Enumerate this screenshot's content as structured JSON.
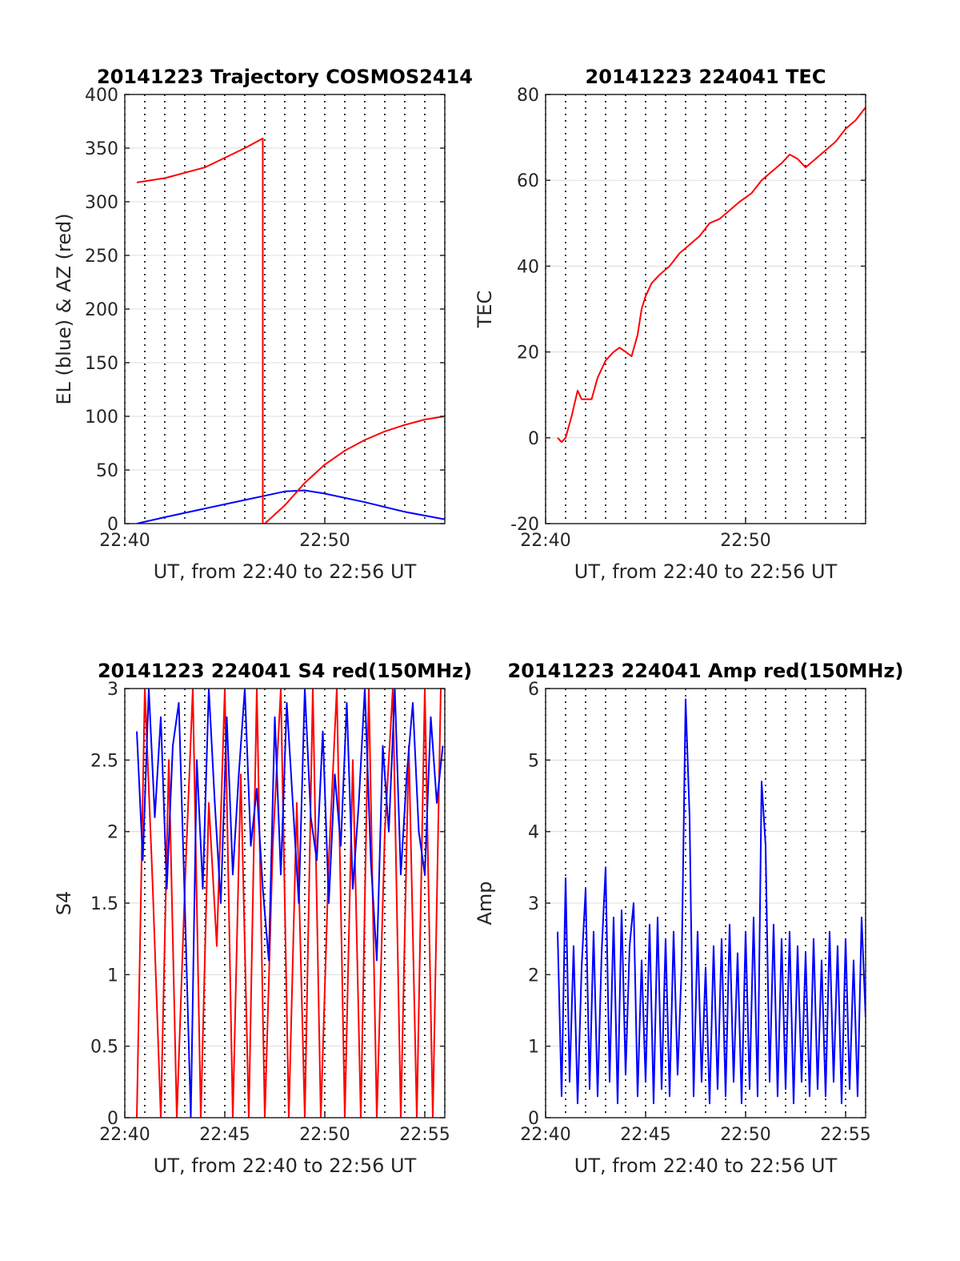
{
  "chart_data": [
    {
      "type": "line",
      "title": "20141223 Trajectory COSMOS2414",
      "xlabel": "UT, from 22:40 to 22:56 UT",
      "ylabel": "EL (blue) & AZ (red)",
      "x_unit": "minutes after 22:40 UT",
      "xlim": [
        0,
        16
      ],
      "ylim": [
        0,
        400
      ],
      "xticks": [
        {
          "v": 0,
          "label": "22:40"
        },
        {
          "v": 10,
          "label": "22:50"
        }
      ],
      "yticks": [
        0,
        50,
        100,
        150,
        200,
        250,
        300,
        350,
        400
      ],
      "grid": true,
      "series": [
        {
          "color": "#0000ff",
          "x": [
            0.6,
            2,
            4,
            6,
            7,
            8,
            9,
            10,
            12,
            14,
            16
          ],
          "y": [
            0,
            6,
            14,
            22,
            26,
            30,
            31,
            28,
            20,
            11,
            4
          ]
        },
        {
          "color": "#ff0000",
          "x": [
            0.6,
            2,
            4,
            5,
            6,
            6.9,
            6.9,
            7,
            8,
            9,
            10,
            11,
            12,
            13,
            14,
            15,
            16
          ],
          "y": [
            318,
            322,
            332,
            341,
            350,
            359,
            0,
            0,
            17,
            38,
            55,
            68,
            78,
            86,
            92,
            97,
            100
          ]
        }
      ]
    },
    {
      "type": "line",
      "title": "20141223 224041 TEC",
      "xlabel": "UT, from 22:40 to 22:56 UT",
      "ylabel": "TEC",
      "x_unit": "minutes after 22:40 UT",
      "xlim": [
        0,
        16
      ],
      "ylim": [
        -20,
        80
      ],
      "xticks": [
        {
          "v": 0,
          "label": "22:40"
        },
        {
          "v": 10,
          "label": "22:50"
        }
      ],
      "yticks": [
        -20,
        0,
        20,
        40,
        60,
        80
      ],
      "grid": true,
      "series": [
        {
          "color": "#ff0000",
          "x": [
            0.6,
            0.8,
            1.0,
            1.3,
            1.6,
            1.8,
            2.0,
            2.3,
            2.6,
            3.0,
            3.4,
            3.7,
            4.0,
            4.3,
            4.6,
            4.8,
            5.0,
            5.3,
            5.7,
            6.2,
            6.7,
            7.2,
            7.7,
            8.2,
            8.7,
            9.2,
            9.7,
            10.3,
            10.8,
            11.3,
            11.8,
            12.2,
            12.6,
            13.0,
            13.5,
            14.0,
            14.5,
            15.0,
            15.5,
            16.0
          ],
          "y": [
            0,
            -1,
            0,
            5,
            11,
            9,
            9,
            9,
            14,
            18,
            20,
            21,
            20,
            19,
            24,
            30,
            33,
            36,
            38,
            40,
            43,
            45,
            47,
            50,
            51,
            53,
            55,
            57,
            60,
            62,
            64,
            66,
            65,
            63,
            65,
            67,
            69,
            72,
            74,
            77
          ]
        }
      ]
    },
    {
      "type": "line",
      "title": "20141223 224041 S4 red(150MHz)",
      "xlabel": "UT, from 22:40 to 22:56 UT",
      "ylabel": "S4",
      "x_unit": "minutes after 22:40 UT",
      "xlim": [
        0,
        16
      ],
      "ylim": [
        0,
        3
      ],
      "xticks": [
        {
          "v": 0,
          "label": "22:40"
        },
        {
          "v": 5,
          "label": "22:45"
        },
        {
          "v": 10,
          "label": "22:50"
        },
        {
          "v": 15,
          "label": "22:55"
        }
      ],
      "yticks": [
        0,
        0.5,
        1,
        1.5,
        2,
        2.5,
        3
      ],
      "grid": true,
      "series": [
        {
          "color": "#ff0000",
          "x": [
            0.6,
            1.0,
            1.4,
            1.8,
            2.2,
            2.6,
            3.0,
            3.4,
            3.8,
            4.2,
            4.6,
            5.0,
            5.4,
            5.8,
            6.2,
            6.6,
            7.0,
            7.4,
            7.8,
            8.2,
            8.6,
            9.0,
            9.4,
            9.8,
            10.2,
            10.6,
            11.0,
            11.4,
            11.8,
            12.2,
            12.6,
            13.0,
            13.4,
            13.8,
            14.2,
            14.6,
            15.0,
            15.4,
            15.8
          ],
          "y": [
            0,
            3,
            1.6,
            0,
            2.5,
            0,
            1.6,
            3,
            0,
            2.2,
            1.2,
            3,
            0,
            2.4,
            0,
            3,
            0,
            1.9,
            3,
            0,
            2.2,
            0,
            3,
            0,
            1.8,
            3,
            0,
            2.5,
            0,
            3,
            0,
            2.0,
            3,
            0,
            2.6,
            0,
            3,
            0,
            3
          ]
        },
        {
          "color": "#0000ff",
          "x": [
            0.6,
            0.9,
            1.2,
            1.5,
            1.8,
            2.1,
            2.4,
            2.7,
            3.0,
            3.3,
            3.6,
            3.9,
            4.2,
            4.5,
            4.8,
            5.1,
            5.4,
            5.7,
            6.0,
            6.3,
            6.6,
            6.9,
            7.2,
            7.5,
            7.8,
            8.1,
            8.4,
            8.7,
            9.0,
            9.3,
            9.6,
            9.9,
            10.2,
            10.5,
            10.8,
            11.1,
            11.4,
            11.7,
            12.0,
            12.3,
            12.6,
            12.9,
            13.2,
            13.5,
            13.8,
            14.1,
            14.4,
            14.7,
            15.0,
            15.3,
            15.6,
            15.9
          ],
          "y": [
            2.7,
            1.8,
            3,
            2.1,
            2.8,
            1.6,
            2.6,
            2.9,
            1.5,
            0,
            2.5,
            1.6,
            3,
            2.2,
            1.5,
            2.8,
            1.7,
            2.4,
            3,
            1.9,
            2.3,
            1.6,
            1.1,
            2.8,
            1.7,
            2.9,
            2.2,
            1.5,
            3,
            2.1,
            1.8,
            2.7,
            1.5,
            2.4,
            1.9,
            2.9,
            1.6,
            2.2,
            3,
            1.8,
            1.1,
            2.6,
            2.0,
            3,
            1.7,
            2.4,
            2.9,
            2.0,
            1.7,
            2.8,
            2.2,
            2.6
          ]
        }
      ]
    },
    {
      "type": "line",
      "title": "20141223 224041 Amp red(150MHz)",
      "xlabel": "UT, from 22:40 to 22:56 UT",
      "ylabel": "Amp",
      "x_unit": "minutes after 22:40 UT",
      "xlim": [
        0,
        16
      ],
      "ylim": [
        0,
        6
      ],
      "xticks": [
        {
          "v": 0,
          "label": "22:40"
        },
        {
          "v": 5,
          "label": "22:45"
        },
        {
          "v": 10,
          "label": "22:50"
        },
        {
          "v": 15,
          "label": "22:55"
        }
      ],
      "yticks": [
        0,
        1,
        2,
        3,
        4,
        5,
        6
      ],
      "grid": true,
      "series": [
        {
          "color": "#0000ff",
          "x": [
            0.6,
            0.8,
            1.0,
            1.2,
            1.4,
            1.6,
            1.8,
            2.0,
            2.2,
            2.4,
            2.6,
            2.8,
            3.0,
            3.2,
            3.4,
            3.6,
            3.8,
            4.0,
            4.2,
            4.4,
            4.6,
            4.8,
            5.0,
            5.2,
            5.4,
            5.6,
            5.8,
            6.0,
            6.2,
            6.4,
            6.6,
            6.8,
            7.0,
            7.2,
            7.4,
            7.6,
            7.8,
            8.0,
            8.2,
            8.4,
            8.6,
            8.8,
            9.0,
            9.2,
            9.4,
            9.6,
            9.8,
            10.0,
            10.2,
            10.4,
            10.6,
            10.8,
            11.0,
            11.2,
            11.4,
            11.6,
            11.8,
            12.0,
            12.2,
            12.4,
            12.6,
            12.8,
            13.0,
            13.2,
            13.4,
            13.6,
            13.8,
            14.0,
            14.2,
            14.4,
            14.6,
            14.8,
            15.0,
            15.2,
            15.4,
            15.6,
            15.8,
            16.0
          ],
          "y": [
            2.6,
            0.3,
            3.35,
            0.5,
            2.4,
            0.2,
            2.1,
            3.2,
            0.4,
            2.6,
            0.3,
            2.3,
            3.5,
            0.5,
            2.8,
            0.2,
            2.9,
            0.6,
            2.4,
            3.0,
            0.3,
            2.2,
            0.5,
            2.7,
            0.2,
            2.8,
            0.4,
            2.5,
            0.3,
            2.6,
            0.6,
            2.1,
            5.85,
            4.2,
            0.3,
            2.6,
            0.5,
            2.1,
            0.2,
            2.4,
            0.4,
            2.5,
            0.3,
            2.7,
            0.5,
            2.3,
            0.2,
            2.6,
            0.4,
            2.8,
            0.3,
            4.7,
            3.8,
            0.5,
            2.7,
            0.3,
            2.5,
            0.4,
            2.6,
            0.2,
            2.4,
            0.5,
            2.3,
            0.3,
            2.5,
            0.4,
            2.2,
            0.3,
            2.6,
            0.5,
            2.4,
            0.2,
            2.5,
            0.4,
            2.2,
            0.3,
            2.8,
            1.4
          ]
        }
      ]
    }
  ]
}
